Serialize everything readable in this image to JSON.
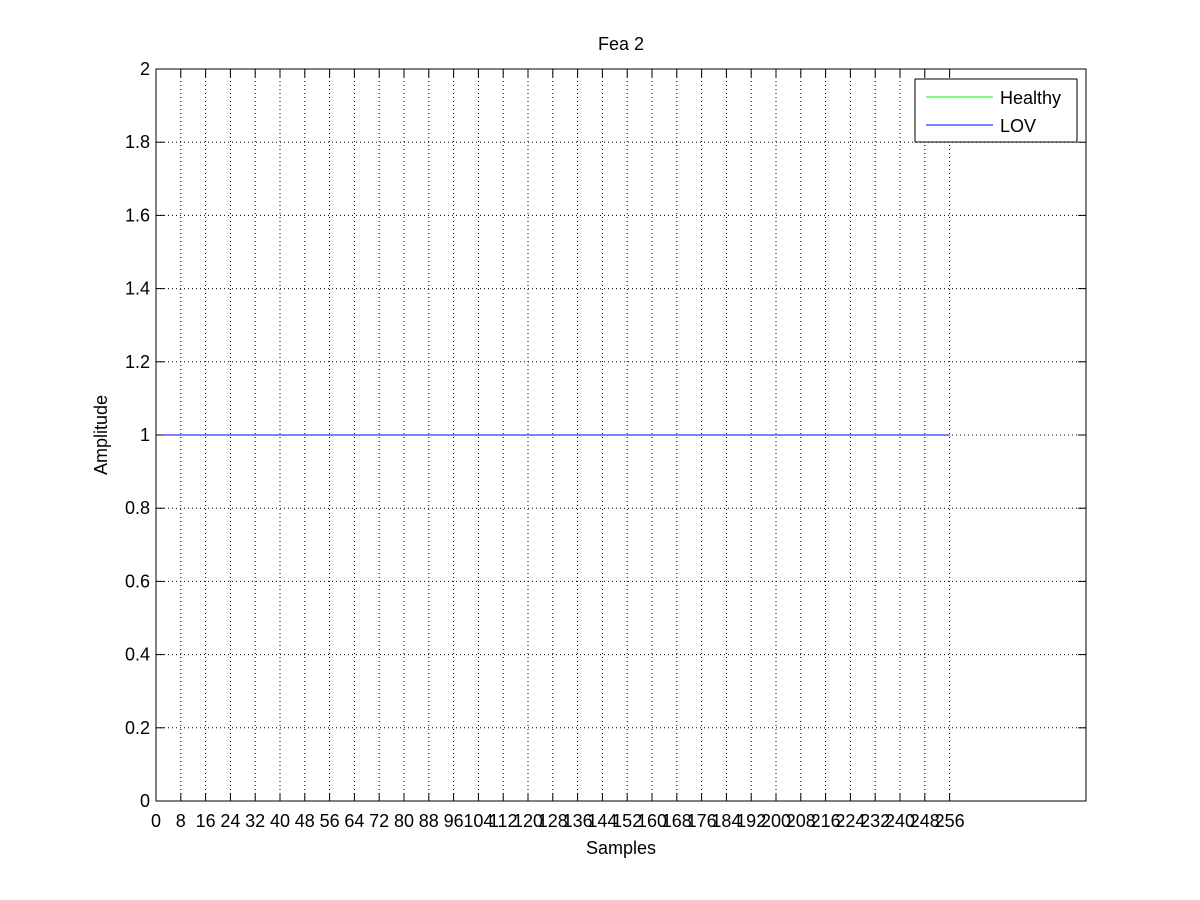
{
  "chart_data": {
    "type": "line",
    "title": "Fea 2",
    "xlabel": "Samples",
    "ylabel": "Amplitude",
    "xlim": [
      0,
      300
    ],
    "ylim": [
      0,
      2
    ],
    "grid": true,
    "grid_style": "dotted",
    "legend_position": "top-right",
    "x_ticks": [
      0,
      8,
      16,
      24,
      32,
      40,
      48,
      56,
      64,
      72,
      80,
      88,
      96,
      104,
      112,
      120,
      128,
      136,
      144,
      152,
      160,
      168,
      176,
      184,
      192,
      200,
      208,
      216,
      224,
      232,
      240,
      248,
      256
    ],
    "y_ticks": [
      0,
      0.2,
      0.4,
      0.6,
      0.8,
      1,
      1.2,
      1.4,
      1.6,
      1.8,
      2
    ],
    "y_tick_labels": [
      "0",
      "0.2",
      "0.4",
      "0.6",
      "0.8",
      "1",
      "1.2",
      "1.4",
      "1.6",
      "1.8",
      "2"
    ],
    "series": [
      {
        "name": "Healthy",
        "color": "#00ff00",
        "x": [
          0,
          256
        ],
        "y": [
          1,
          1
        ]
      },
      {
        "name": "LOV",
        "color": "#0000ff",
        "x": [
          0,
          256
        ],
        "y": [
          1,
          1
        ]
      }
    ]
  }
}
